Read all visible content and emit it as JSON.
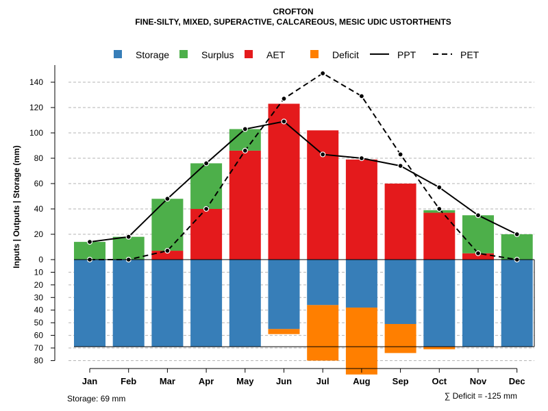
{
  "chart_data": {
    "type": "bar",
    "title": "CROFTON",
    "subtitle": "FINE-SILTY, MIXED, SUPERACTIVE, CALCAREOUS, MESIC UDIC USTORTHENTS",
    "ylabel": "Inputs | Outputs | Storage    (mm)",
    "categories": [
      "Jan",
      "Feb",
      "Mar",
      "Apr",
      "May",
      "Jun",
      "Jul",
      "Aug",
      "Sep",
      "Oct",
      "Nov",
      "Dec"
    ],
    "ylim": [
      -80,
      150
    ],
    "yticks_positive": [
      20,
      40,
      60,
      80,
      100,
      120,
      140
    ],
    "yticks_negative": [
      0,
      10,
      20,
      30,
      40,
      50,
      60,
      70,
      80
    ],
    "storage_capacity": 69,
    "series": [
      {
        "name": "Storage",
        "color": "#377EB8",
        "values": [
          69,
          69,
          69,
          69,
          69,
          55,
          36,
          38,
          51,
          69,
          69,
          69
        ]
      },
      {
        "name": "Surplus",
        "color": "#4DAF4A",
        "values": [
          14,
          18,
          41,
          36,
          17,
          0,
          0,
          0,
          0,
          2,
          30,
          20
        ]
      },
      {
        "name": "AET",
        "color": "#E41A1C",
        "values": [
          0,
          0,
          7,
          40,
          86,
          123,
          102,
          79,
          60,
          37,
          5,
          0
        ]
      },
      {
        "name": "Deficit",
        "color": "#FF7F00",
        "values": [
          0,
          0,
          0,
          0,
          0,
          4,
          44,
          53,
          23,
          2,
          0,
          0
        ]
      },
      {
        "name": "PPT",
        "style": "solid",
        "values": [
          14,
          18,
          48,
          76,
          103,
          109,
          83,
          80,
          74,
          57,
          35,
          20
        ]
      },
      {
        "name": "PET",
        "style": "dashed",
        "values": [
          0,
          0,
          7,
          40,
          86,
          127,
          147,
          129,
          83,
          40,
          5,
          0
        ]
      }
    ],
    "legend": [
      "Storage",
      "Surplus",
      "AET",
      "Deficit",
      "PPT",
      "PET"
    ],
    "legend_position": "top",
    "grid": true
  },
  "footer": {
    "storage_label": "Storage: 69 mm",
    "deficit_label": "∑ Deficit = -125 mm"
  }
}
